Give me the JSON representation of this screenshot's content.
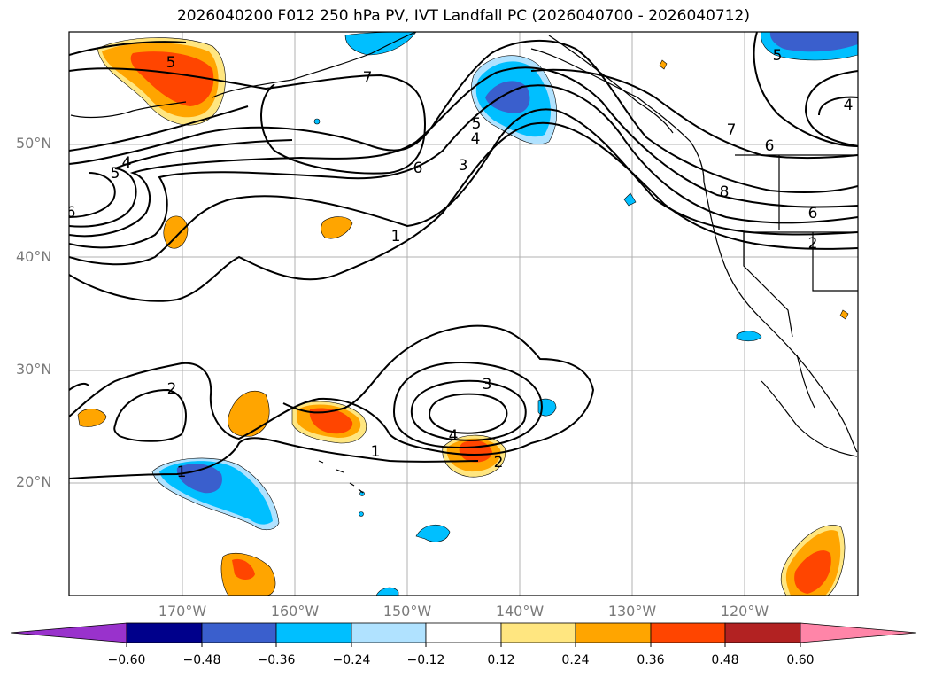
{
  "title": "2026040200 F012 250 hPa PV, IVT Landfall PC (2026040700 - 2026040712)",
  "map": {
    "lat_ticks": [
      "50°N",
      "40°N",
      "30°N",
      "20°N"
    ],
    "lon_ticks": [
      "170°W",
      "160°W",
      "150°W",
      "140°W",
      "130°W",
      "120°W"
    ],
    "contour_labels": [
      "5",
      "7",
      "4",
      "5",
      "6",
      "6",
      "5",
      "4",
      "3",
      "7",
      "6",
      "4",
      "8",
      "6",
      "2",
      "1",
      "2",
      "3",
      "4",
      "1",
      "1",
      "2"
    ]
  },
  "colorbar": {
    "ticks": [
      "−0.60",
      "−0.48",
      "−0.36",
      "−0.24",
      "−0.12",
      "0.12",
      "0.24",
      "0.36",
      "0.48",
      "0.60"
    ],
    "colors": [
      "#9932cc",
      "#00008b",
      "#3a5fcd",
      "#00bfff",
      "#b0e2ff",
      "#ffffff",
      "#ffe680",
      "#ffa500",
      "#ff4500",
      "#b22222",
      "#ff85a8"
    ]
  }
}
